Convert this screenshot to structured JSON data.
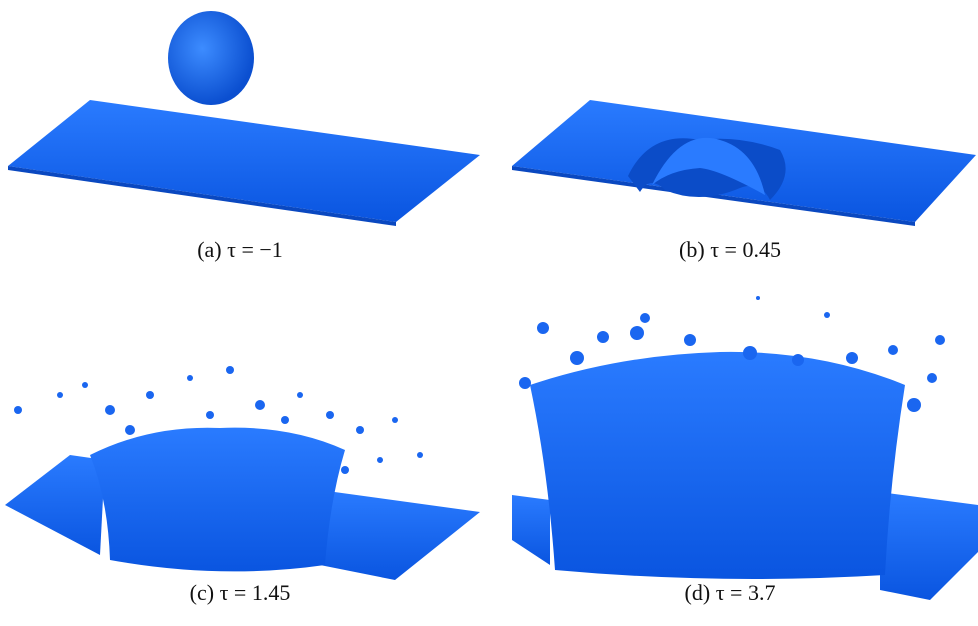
{
  "panels": [
    {
      "caption": "(a) τ = −1"
    },
    {
      "caption": "(b) τ = 0.45"
    },
    {
      "caption": "(c) τ = 1.45"
    },
    {
      "caption": "(d) τ = 3.7"
    }
  ]
}
